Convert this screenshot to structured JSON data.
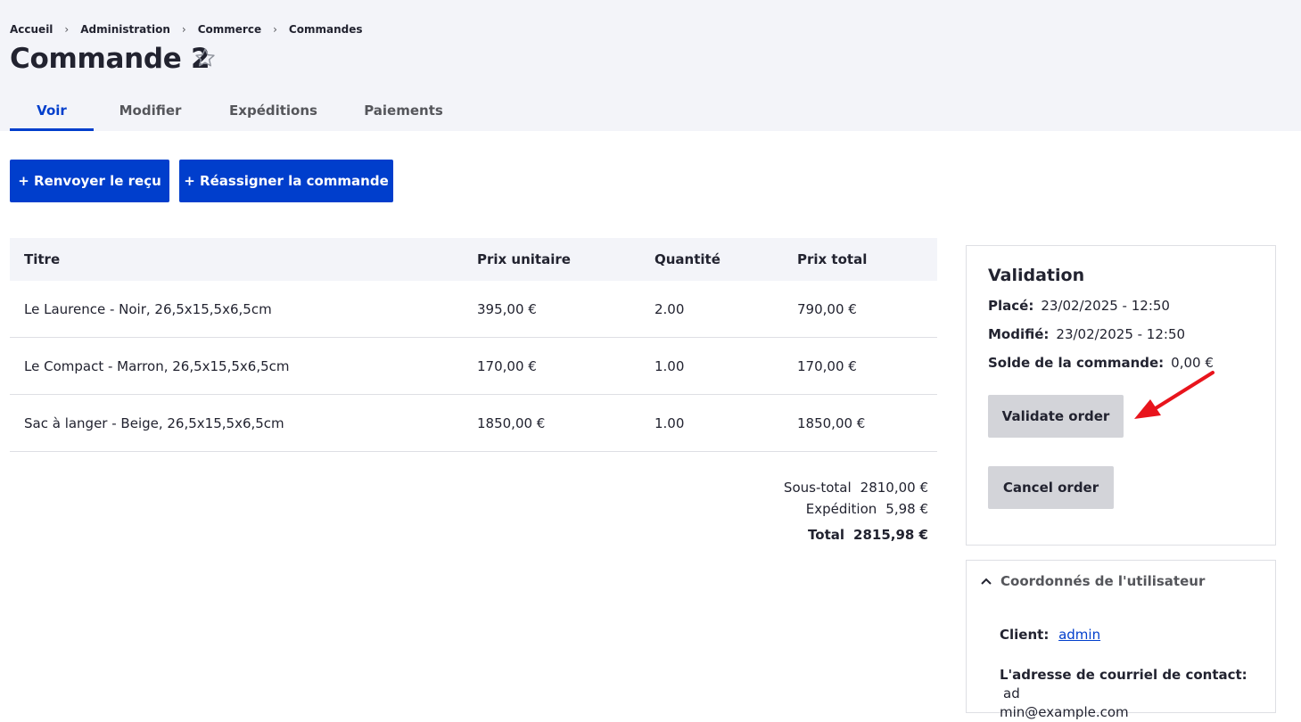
{
  "breadcrumb": [
    "Accueil",
    "Administration",
    "Commerce",
    "Commandes"
  ],
  "page_title": "Commande 2",
  "tabs": [
    "Voir",
    "Modifier",
    "Expéditions",
    "Paiements"
  ],
  "actions": {
    "resend_receipt": "+ Renvoyer le reçu",
    "reassign_order": "+ Réassigner la commande"
  },
  "table": {
    "headers": [
      "Titre",
      "Prix unitaire",
      "Quantité",
      "Prix total"
    ],
    "rows": [
      [
        "Le Laurence - Noir, 26,5x15,5x6,5cm",
        "395,00 €",
        "2.00",
        "790,00 €"
      ],
      [
        "Le Compact - Marron, 26,5x15,5x6,5cm",
        "170,00 €",
        "1.00",
        "170,00 €"
      ],
      [
        "Sac à langer - Beige, 26,5x15,5x6,5cm",
        "1850,00 €",
        "1.00",
        "1850,00 €"
      ]
    ]
  },
  "totals": {
    "subtotal_label": "Sous-total",
    "subtotal_value": "2810,00 €",
    "shipping_label": "Expédition",
    "shipping_value": "5,98 €",
    "total_label": "Total",
    "total_value": "2815,98 €"
  },
  "validation": {
    "title": "Validation",
    "placed_label": "Placé:",
    "placed_value": "23/02/2025 - 12:50",
    "modified_label": "Modifié:",
    "modified_value": "23/02/2025 - 12:50",
    "balance_label": "Solde de la commande:",
    "balance_value": "0,00 €",
    "validate_button": "Validate order",
    "cancel_button": "Cancel order"
  },
  "customer": {
    "title": "Coordonnés de l'utilisateur",
    "client_label": "Client:",
    "client_value": "admin",
    "email_label": "L'adresse de courriel de contact:",
    "email_value_1": "ad",
    "email_value_2": "min@example.com"
  },
  "colors": {
    "accent": "#003ecc",
    "header_bg": "#f3f4f9",
    "annotation_arrow": "#e8141c"
  },
  "icons": [
    "star-icon",
    "chevron-up-icon",
    "arrow-annotation-icon"
  ]
}
